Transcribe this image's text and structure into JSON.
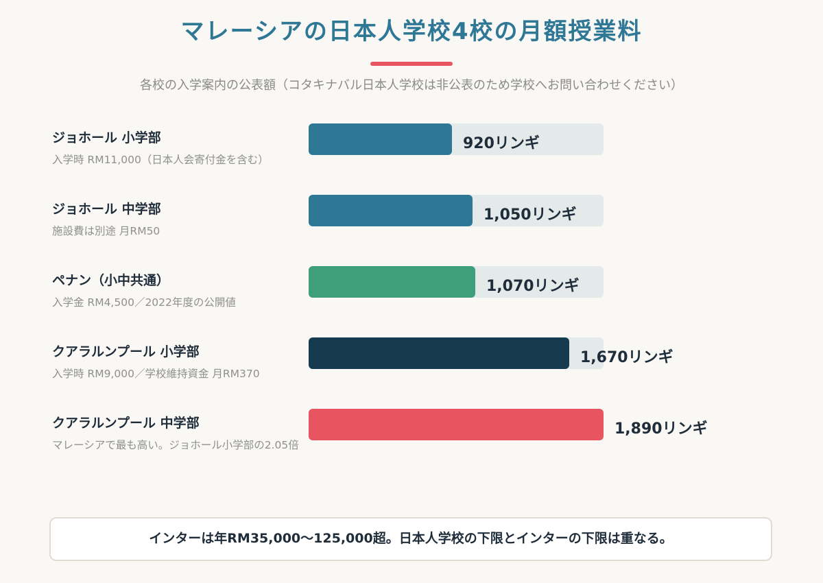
{
  "title": "マレーシアの日本人学校4校の月額授業料",
  "subtitle": "各校の入学案内の公表額（コタキナバル日本人学校は非公表のため学校へお問い合わせください）",
  "note": "インターは年RM35,000〜125,000超。日本人学校の下限とインターの下限は重なる。",
  "colors": {
    "title": "#2e7795",
    "accent": "#e85561",
    "track": "#e4eaea"
  },
  "chart_data": {
    "type": "bar",
    "orientation": "horizontal",
    "title": "マレーシアの日本人学校4校の月額授業料",
    "subtitle": "各校の入学案内の公表額（コタキナバル日本人学校は非公表のため学校へお問い合わせください）",
    "unit": "リンギ",
    "xlim": [
      0,
      1890
    ],
    "categories": [
      "ジョホール 小学部",
      "ジョホール 中学部",
      "ペナン（小中共通）",
      "クアラルンプール 小学部",
      "クアラルンプール 中学部"
    ],
    "values": [
      920,
      1050,
      1070,
      1670,
      1890
    ],
    "value_labels": [
      "920リンギ",
      "1,050リンギ",
      "1,070リンギ",
      "1,670リンギ",
      "1,890リンギ"
    ],
    "notes": [
      "入学時 RM11,000（日本人会寄付金を含む）",
      "施設費は別途 月RM50",
      "入学金 RM4,500／2022年度の公開値",
      "入学時 RM9,000／学校維持資金 月RM370",
      "マレーシアで最も高い。ジョホール小学部の2.05倍"
    ],
    "bar_colors": [
      "#2e7795",
      "#2e7795",
      "#3f9e7b",
      "#163a4f",
      "#e85561"
    ]
  }
}
